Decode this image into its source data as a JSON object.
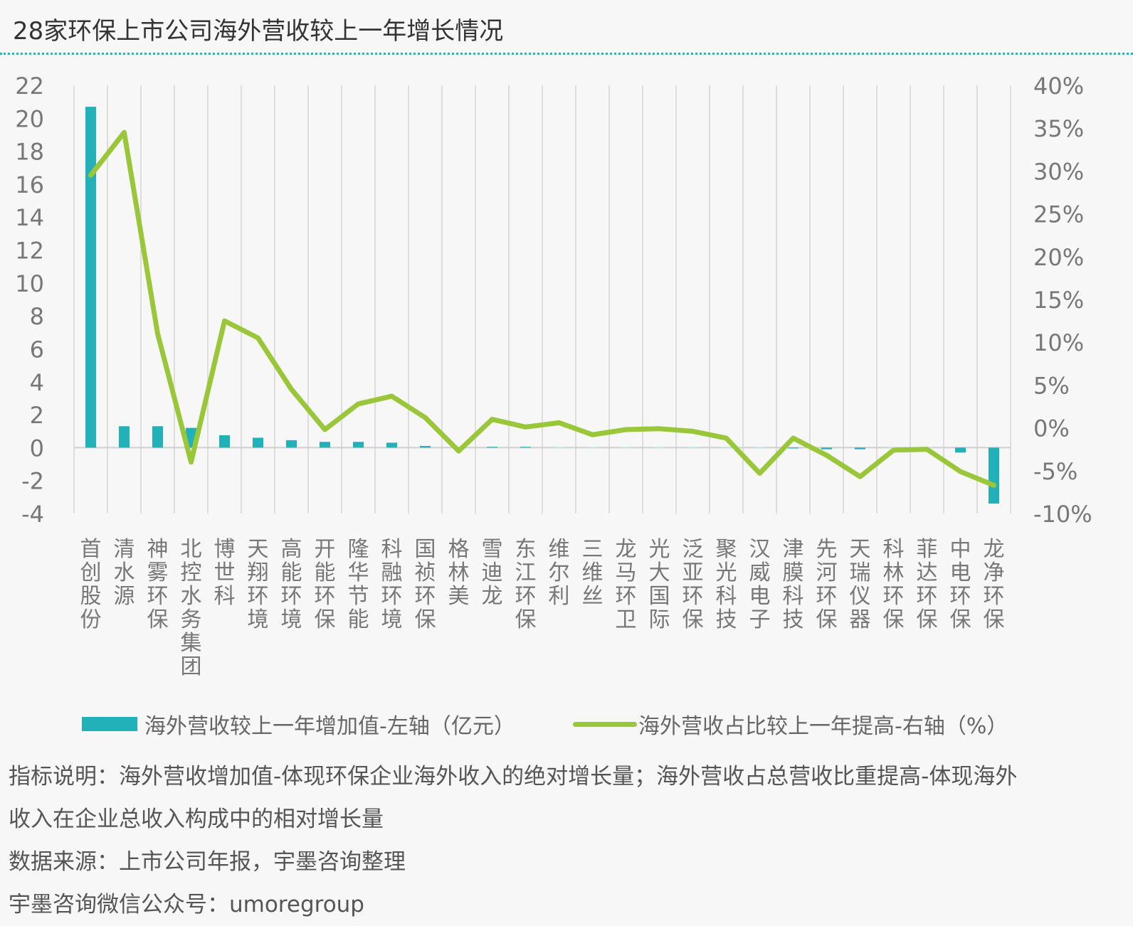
{
  "title": "28家环保上市公司海外营收较上一年增长情况",
  "legend": {
    "bar_label": "海外营收较上一年增加值-左轴（亿元）",
    "line_label": "海外营收占比较上一年提高-右轴（%）"
  },
  "notes": {
    "note1": "指标说明：海外营收增加值-体现环保企业海外收入的绝对增长量；海外营收占总营收比重提高-体现海外",
    "note2": "收入在企业总收入构成中的相对增长量",
    "source": "数据来源：上市公司年报，宇墨咨询整理",
    "wechat": "宇墨咨询微信公众号：umoregroup"
  },
  "colors": {
    "bar": "#22b1b8",
    "line": "#9ac73a",
    "grid": "#dddddd",
    "title_rule": "#2bb3b8"
  },
  "chart_data": {
    "type": "bar",
    "title": "28家环保上市公司海外营收较上一年增长情况",
    "categories": [
      "首创股份",
      "清水源",
      "神雾环保",
      "北控水务集团",
      "博世科",
      "天翔环境",
      "高能环境",
      "开能环保",
      "隆华节能",
      "科融环境",
      "国祯环保",
      "格林美",
      "雪迪龙",
      "东江环保",
      "维尔利",
      "三维丝",
      "龙马环卫",
      "光大国际",
      "泛亚环保",
      "聚光科技",
      "汉威电子",
      "津膜科技",
      "先河环保",
      "天瑞仪器",
      "科林环保",
      "菲达环保",
      "中电环保",
      "龙净环保"
    ],
    "y_left": {
      "ylim": [
        -4,
        22
      ],
      "ticks": [
        "22",
        "20",
        "18",
        "16",
        "14",
        "12",
        "10",
        "8",
        "6",
        "4",
        "2",
        "0",
        "-2",
        "-4"
      ]
    },
    "y_right": {
      "ylim": [
        -10,
        40
      ],
      "ticks": [
        "40%",
        "35%",
        "30%",
        "25%",
        "20%",
        "15%",
        "10%",
        "5%",
        "0%",
        "-5%",
        "-10%"
      ]
    },
    "series": [
      {
        "name": "海外营收较上一年增加值-左轴（亿元）",
        "type": "bar",
        "axis": "left",
        "values": [
          20.7,
          1.3,
          1.3,
          1.2,
          0.75,
          0.6,
          0.45,
          0.35,
          0.35,
          0.3,
          0.1,
          0.0,
          0.05,
          0.05,
          0.0,
          0.0,
          0.0,
          0.0,
          0.0,
          0.0,
          0.0,
          -0.05,
          -0.1,
          -0.1,
          0.0,
          0.0,
          -0.3,
          -3.4
        ]
      },
      {
        "name": "海外营收占比较上一年提高-右轴（%）",
        "type": "line",
        "axis": "right",
        "values": [
          29.5,
          34.5,
          11,
          -4,
          12.5,
          10.5,
          4.5,
          -0.2,
          2.8,
          3.7,
          1.2,
          -2.7,
          1,
          0.1,
          0.6,
          -0.8,
          -0.2,
          -0.1,
          -0.4,
          -1.2,
          -5.3,
          -1.2,
          -3.2,
          -5.7,
          -2.6,
          -2.5,
          -5.1,
          -6.7
        ]
      }
    ],
    "grid": true,
    "legend_position": "bottom"
  }
}
